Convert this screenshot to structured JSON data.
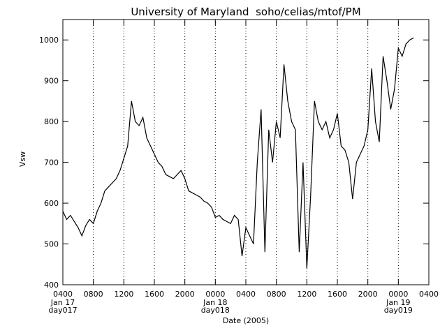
{
  "chart_data": {
    "type": "line",
    "title": "University of Maryland  soho/celias/mtof/PM",
    "ylabel": "Vsw",
    "xlabel": "Date (2005)",
    "color": "#000000",
    "grid": {
      "x": true,
      "style": "dotted"
    },
    "xlim": [
      "2005-01-17T04:00",
      "2005-01-19T04:00"
    ],
    "ylim": [
      400,
      1050
    ],
    "yticks": [
      400,
      500,
      600,
      700,
      800,
      900,
      1000
    ],
    "xticks": [
      {
        "value": "2005-01-17T04:00",
        "label": "0400",
        "date": "Jan 17",
        "day": "day017"
      },
      {
        "value": "2005-01-17T08:00",
        "label": "0800"
      },
      {
        "value": "2005-01-17T12:00",
        "label": "1200"
      },
      {
        "value": "2005-01-17T16:00",
        "label": "1600"
      },
      {
        "value": "2005-01-17T20:00",
        "label": "2000"
      },
      {
        "value": "2005-01-18T00:00",
        "label": "0000",
        "date": "Jan 18",
        "day": "day018"
      },
      {
        "value": "2005-01-18T04:00",
        "label": "0400"
      },
      {
        "value": "2005-01-18T08:00",
        "label": "0800"
      },
      {
        "value": "2005-01-18T12:00",
        "label": "1200"
      },
      {
        "value": "2005-01-18T16:00",
        "label": "1600"
      },
      {
        "value": "2005-01-18T20:00",
        "label": "2000"
      },
      {
        "value": "2005-01-19T00:00",
        "label": "0000",
        "date": "Jan 19",
        "day": "day019"
      },
      {
        "value": "2005-01-19T04:00",
        "label": "0400"
      }
    ],
    "x": [
      "2005-01-17T04:00",
      "2005-01-17T04:30",
      "2005-01-17T05:00",
      "2005-01-17T05:30",
      "2005-01-17T06:00",
      "2005-01-17T06:30",
      "2005-01-17T07:00",
      "2005-01-17T07:30",
      "2005-01-17T08:00",
      "2005-01-17T08:30",
      "2005-01-17T09:00",
      "2005-01-17T09:30",
      "2005-01-17T10:00",
      "2005-01-17T10:30",
      "2005-01-17T11:00",
      "2005-01-17T11:30",
      "2005-01-17T12:00",
      "2005-01-17T12:30",
      "2005-01-17T13:00",
      "2005-01-17T13:30",
      "2005-01-17T14:00",
      "2005-01-17T14:30",
      "2005-01-17T15:00",
      "2005-01-17T15:30",
      "2005-01-17T16:00",
      "2005-01-17T16:30",
      "2005-01-17T17:00",
      "2005-01-17T17:30",
      "2005-01-17T18:00",
      "2005-01-17T18:30",
      "2005-01-17T19:00",
      "2005-01-17T19:30",
      "2005-01-17T20:00",
      "2005-01-17T20:30",
      "2005-01-17T21:00",
      "2005-01-17T21:30",
      "2005-01-17T22:00",
      "2005-01-17T22:30",
      "2005-01-17T23:00",
      "2005-01-17T23:30",
      "2005-01-18T00:00",
      "2005-01-18T00:30",
      "2005-01-18T01:00",
      "2005-01-18T01:30",
      "2005-01-18T02:00",
      "2005-01-18T02:30",
      "2005-01-18T03:00",
      "2005-01-18T03:30",
      "2005-01-18T04:00",
      "2005-01-18T04:30",
      "2005-01-18T05:00",
      "2005-01-18T05:30",
      "2005-01-18T06:00",
      "2005-01-18T06:30",
      "2005-01-18T07:00",
      "2005-01-18T07:30",
      "2005-01-18T08:00",
      "2005-01-18T08:30",
      "2005-01-18T09:00",
      "2005-01-18T09:30",
      "2005-01-18T10:00",
      "2005-01-18T10:30",
      "2005-01-18T11:00",
      "2005-01-18T11:30",
      "2005-01-18T12:00",
      "2005-01-18T12:30",
      "2005-01-18T13:00",
      "2005-01-18T13:30",
      "2005-01-18T14:00",
      "2005-01-18T14:30",
      "2005-01-18T15:00",
      "2005-01-18T15:30",
      "2005-01-18T16:00",
      "2005-01-18T16:30",
      "2005-01-18T17:00",
      "2005-01-18T17:30",
      "2005-01-18T18:00",
      "2005-01-18T18:30",
      "2005-01-18T19:00",
      "2005-01-18T19:30",
      "2005-01-18T20:00",
      "2005-01-18T20:30",
      "2005-01-18T21:00",
      "2005-01-18T21:30",
      "2005-01-18T22:00",
      "2005-01-18T22:30",
      "2005-01-18T23:00",
      "2005-01-18T23:30",
      "2005-01-19T00:00",
      "2005-01-19T00:30",
      "2005-01-19T01:00",
      "2005-01-19T01:30",
      "2005-01-19T02:00"
    ],
    "values": [
      580,
      560,
      570,
      555,
      540,
      520,
      545,
      560,
      550,
      580,
      600,
      630,
      640,
      650,
      660,
      680,
      710,
      740,
      850,
      800,
      790,
      810,
      760,
      740,
      720,
      700,
      690,
      670,
      665,
      660,
      670,
      680,
      660,
      630,
      625,
      620,
      615,
      605,
      600,
      590,
      565,
      570,
      560,
      555,
      550,
      570,
      560,
      470,
      540,
      520,
      500,
      700,
      830,
      480,
      780,
      700,
      800,
      760,
      940,
      850,
      800,
      780,
      480,
      700,
      440,
      620,
      850,
      800,
      780,
      800,
      760,
      780,
      820,
      740,
      730,
      700,
      610,
      700,
      720,
      740,
      780,
      930,
      800,
      750,
      960,
      900,
      830,
      880,
      980,
      960,
      990,
      1000,
      1005
    ]
  }
}
